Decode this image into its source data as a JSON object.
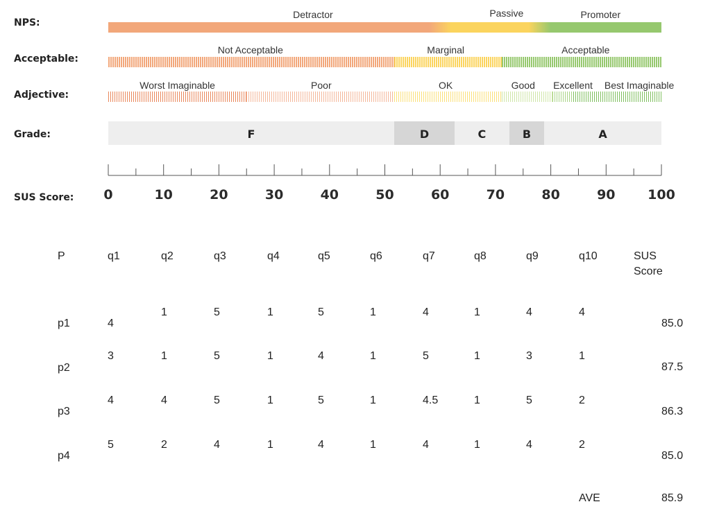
{
  "row_labels": {
    "nps": "NPS:",
    "acceptable": "Acceptable:",
    "adjective": "Adjective:",
    "grade": "Grade:",
    "sus": "SUS Score:"
  },
  "chart_data": {
    "type": "table",
    "scale": {
      "xlim": [
        0,
        100
      ],
      "ticks": [
        0,
        10,
        20,
        30,
        40,
        50,
        60,
        70,
        80,
        90,
        100
      ],
      "minor_tick_step": 5,
      "nps_bands": [
        {
          "label": "Detractor",
          "from": 0,
          "to": 60,
          "color": "#f2a77a"
        },
        {
          "label": "Passive",
          "from": 60,
          "to": 78,
          "color": "#fbd45e"
        },
        {
          "label": "Promoter",
          "from": 78,
          "to": 100,
          "color": "#96c86e"
        }
      ],
      "acceptable_bands": [
        {
          "label": "Not Acceptable",
          "from": 0,
          "to": 51.7,
          "color": "#f2a77a"
        },
        {
          "label": "Marginal",
          "from": 51.7,
          "to": 71.1,
          "color": "#fbd45e"
        },
        {
          "label": "Acceptable",
          "from": 71.1,
          "to": 100,
          "color": "#96c86e"
        }
      ],
      "adjective_bands": [
        {
          "label": "Worst Imaginable",
          "from": 0,
          "to": 25,
          "color": "#e9875b"
        },
        {
          "label": "Poor",
          "from": 25,
          "to": 51.7,
          "color": "#f4b79a"
        },
        {
          "label": "OK",
          "from": 51.7,
          "to": 71.1,
          "color": "#fbe07a"
        },
        {
          "label": "Good",
          "from": 71.1,
          "to": 80.3,
          "color": "#cfe6a8"
        },
        {
          "label": "Excellent",
          "from": 80.3,
          "to": 84.1,
          "color": "#a9d486"
        },
        {
          "label": "Best Imaginable",
          "from": 84.1,
          "to": 100,
          "color": "#7fbf5e"
        }
      ],
      "adjective_label_positions": [
        12.5,
        38.5,
        61,
        75,
        84,
        96
      ],
      "grades": [
        {
          "label": "F",
          "from": 0,
          "to": 51.7,
          "shaded": false
        },
        {
          "label": "D",
          "from": 51.7,
          "to": 62.6,
          "shaded": true
        },
        {
          "label": "C",
          "from": 62.6,
          "to": 72.5,
          "shaded": false
        },
        {
          "label": "B",
          "from": 72.5,
          "to": 78.8,
          "shaded": true
        },
        {
          "label": "A",
          "from": 78.8,
          "to": 100,
          "shaded": false
        }
      ]
    },
    "table": {
      "columns": [
        "P",
        "q1",
        "q2",
        "q3",
        "q4",
        "q5",
        "q6",
        "q7",
        "q8",
        "q9",
        "q10",
        "SUS Score"
      ],
      "rows": [
        {
          "p": "p1",
          "q": [
            "4",
            "1",
            "5",
            "1",
            "5",
            "1",
            "4",
            "1",
            "4",
            "4"
          ],
          "sus": "85.0"
        },
        {
          "p": "p2",
          "q": [
            "3",
            "1",
            "5",
            "1",
            "4",
            "1",
            "5",
            "1",
            "3",
            "1"
          ],
          "sus": "87.5"
        },
        {
          "p": "p3",
          "q": [
            "4",
            "4",
            "5",
            "1",
            "5",
            "1",
            "4.5",
            "1",
            "5",
            "2"
          ],
          "sus": "86.3"
        },
        {
          "p": "p4",
          "q": [
            "5",
            "2",
            "4",
            "1",
            "4",
            "1",
            "4",
            "1",
            "4",
            "2"
          ],
          "sus": "85.0"
        }
      ],
      "average_label": "AVE",
      "average_value": "85.9"
    }
  }
}
